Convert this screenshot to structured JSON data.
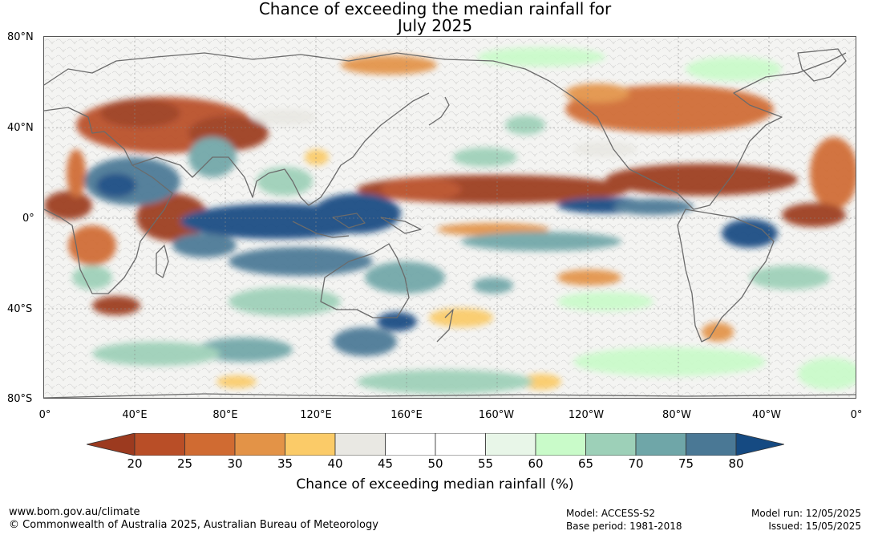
{
  "title": {
    "line1": "Chance of exceeding the median rainfall for",
    "line2": "July 2025"
  },
  "map": {
    "lat_labels": [
      "80°N",
      "40°N",
      "0°",
      "40°S",
      "80°S"
    ],
    "lon_labels": [
      "0°",
      "40°E",
      "80°E",
      "120°E",
      "160°E",
      "160°W",
      "120°W",
      "80°W",
      "40°W",
      "0°"
    ],
    "dry_color": "#9c3a1f",
    "wet_color": "#154a82",
    "neutral_color": "#ffffff",
    "coastline_color": "#6b6b6b"
  },
  "colorbar": {
    "ticks": [
      "20",
      "25",
      "30",
      "35",
      "40",
      "45",
      "50",
      "55",
      "60",
      "65",
      "70",
      "75",
      "80"
    ],
    "colors": [
      "#9c3a1f",
      "#b94e27",
      "#d06b32",
      "#e39347",
      "#fbcb68",
      "#e9e8e3",
      "#ffffff",
      "#ffffff",
      "#e8f6e8",
      "#c9fbc9",
      "#9dd0b8",
      "#6fa6a8",
      "#4a7895",
      "#154a82"
    ],
    "label": "Chance of exceeding median rainfall (%)"
  },
  "footer": {
    "url": "www.bom.gov.au/climate",
    "copyright": "© Commonwealth of Australia 2025, Australian Bureau of Meteorology",
    "model": "Model: ACCESS-S2",
    "base_period": "Base period: 1981-2018",
    "model_run": "Model run: 12/05/2025",
    "issued": "Issued: 15/05/2025"
  }
}
